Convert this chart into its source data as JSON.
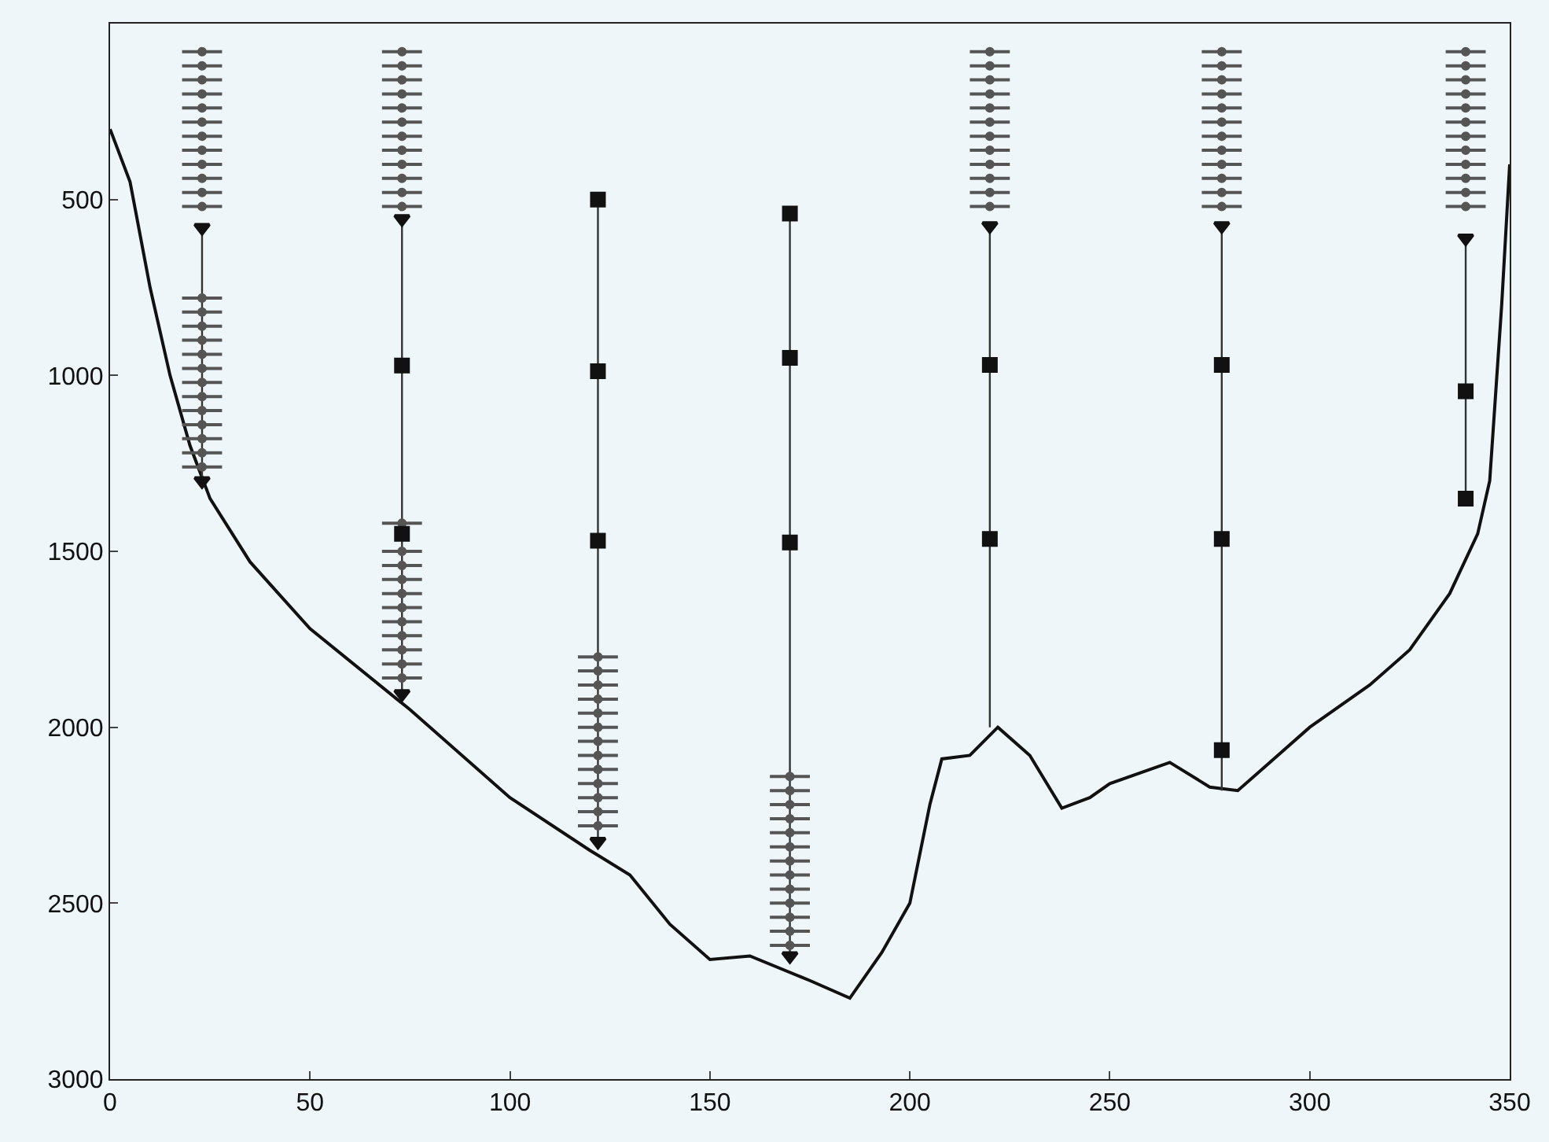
{
  "chart_data": {
    "type": "line",
    "xlim": [
      0,
      350
    ],
    "xticks": [
      0,
      50,
      100,
      150,
      200,
      250,
      300,
      350
    ],
    "ylim": [
      3000,
      0
    ],
    "yticks": [
      500,
      1000,
      1500,
      2000,
      2500,
      3000
    ],
    "grid": false,
    "series": [
      {
        "color": "#111111",
        "x": [
          0,
          5,
          10,
          15,
          20,
          25,
          35,
          50,
          75,
          100,
          120,
          130,
          140,
          150,
          160,
          175,
          185,
          193,
          200,
          205,
          208,
          215,
          222,
          230,
          238,
          245,
          250,
          265,
          275,
          282,
          290,
          300,
          315,
          325,
          335,
          342,
          345,
          348,
          350
        ],
        "values": [
          300,
          450,
          750,
          1000,
          1200,
          1350,
          1530,
          1720,
          1950,
          2200,
          2350,
          2420,
          2560,
          2660,
          2650,
          2720,
          2770,
          2640,
          2500,
          2220,
          2090,
          2080,
          2000,
          2080,
          2230,
          2200,
          2160,
          2100,
          2170,
          2180,
          2100,
          2000,
          1880,
          1780,
          1620,
          1450,
          1300,
          800,
          400
        ]
      },
      {
        "type": "line",
        "color": "#333333",
        "x": [
          23,
          23,
          null,
          73,
          73,
          null,
          122,
          122,
          null,
          170,
          170,
          null,
          220,
          220,
          null,
          278,
          278,
          null,
          339,
          339
        ],
        "values": [
          580,
          1300,
          null,
          555,
          1905,
          null,
          500,
          2325,
          null,
          540,
          2650,
          null,
          575,
          2000,
          null,
          575,
          2180,
          null,
          610,
          1350
        ]
      },
      {
        "type": "scatter",
        "marker": "circle",
        "color": "#555555",
        "x": [
          23,
          23,
          23,
          23,
          23,
          23,
          23,
          23,
          23,
          23,
          23,
          23,
          73,
          73,
          73,
          73,
          73,
          73,
          73,
          73,
          73,
          73,
          73,
          73,
          220,
          220,
          220,
          220,
          220,
          220,
          220,
          220,
          220,
          220,
          220,
          220,
          278,
          278,
          278,
          278,
          278,
          278,
          278,
          278,
          278,
          278,
          278,
          278,
          339,
          339,
          339,
          339,
          339,
          339,
          339,
          339,
          339,
          339,
          339,
          339,
          23,
          23,
          23,
          23,
          23,
          23,
          23,
          23,
          23,
          23,
          23,
          23,
          23,
          73,
          73,
          73,
          73,
          73,
          73,
          73,
          73,
          73,
          73,
          73,
          122,
          122,
          122,
          122,
          122,
          122,
          122,
          122,
          122,
          122,
          122,
          122,
          122,
          170,
          170,
          170,
          170,
          170,
          170,
          170,
          170,
          170,
          170,
          170,
          170,
          170
        ],
        "values": [
          80,
          120,
          160,
          200,
          240,
          280,
          320,
          360,
          400,
          440,
          480,
          520,
          80,
          120,
          160,
          200,
          240,
          280,
          320,
          360,
          400,
          440,
          480,
          520,
          80,
          120,
          160,
          200,
          240,
          280,
          320,
          360,
          400,
          440,
          480,
          520,
          80,
          120,
          160,
          200,
          240,
          280,
          320,
          360,
          400,
          440,
          480,
          520,
          80,
          120,
          160,
          200,
          240,
          280,
          320,
          360,
          400,
          440,
          480,
          520,
          780,
          820,
          860,
          900,
          940,
          980,
          1020,
          1060,
          1100,
          1140,
          1180,
          1220,
          1260,
          1420,
          1500,
          1540,
          1580,
          1620,
          1660,
          1700,
          1740,
          1780,
          1820,
          1860,
          1800,
          1840,
          1880,
          1920,
          1960,
          2000,
          2040,
          2080,
          2120,
          2160,
          2200,
          2240,
          2280,
          2140,
          2180,
          2220,
          2260,
          2300,
          2340,
          2380,
          2420,
          2460,
          2500,
          2540,
          2580,
          2620
        ],
        "xerrors": [
          5,
          5,
          5,
          5,
          5,
          5,
          5,
          5,
          5,
          5,
          5,
          5,
          5,
          5,
          5,
          5,
          5,
          5,
          5,
          5,
          5,
          5,
          5,
          5,
          5,
          5,
          5,
          5,
          5,
          5,
          5,
          5,
          5,
          5,
          5,
          5,
          5,
          5,
          5,
          5,
          5,
          5,
          5,
          5,
          5,
          5,
          5,
          5,
          5,
          5,
          5,
          5,
          5,
          5,
          5,
          5,
          5,
          5,
          5,
          5,
          5,
          5,
          5,
          5,
          5,
          5,
          5,
          5,
          5,
          5,
          5,
          5,
          5,
          5,
          5,
          5,
          5,
          5,
          5,
          5,
          5,
          5,
          5,
          5,
          5,
          5,
          5,
          5,
          5,
          5,
          5,
          5,
          5,
          5,
          5,
          5,
          5,
          5,
          5,
          5,
          5,
          5,
          5,
          5,
          5,
          5,
          5,
          5,
          5,
          5
        ]
      },
      {
        "type": "scatter",
        "marker": "triangle",
        "color": "#111111",
        "x": [
          23,
          23,
          73,
          73,
          122,
          170,
          220,
          278,
          339
        ],
        "values": [
          580,
          1300,
          555,
          1905,
          2325,
          2650,
          575,
          575,
          610
        ]
      },
      {
        "type": "scatter",
        "marker": "square",
        "color": "#111111",
        "x": [
          73,
          73,
          122,
          122,
          122,
          170,
          170,
          170,
          220,
          220,
          278,
          278,
          278,
          339,
          339
        ],
        "values": [
          972,
          1450,
          500,
          988,
          1470,
          540,
          950,
          1475,
          970,
          1465,
          970,
          1465,
          2065,
          1045,
          1350
        ]
      }
    ]
  }
}
